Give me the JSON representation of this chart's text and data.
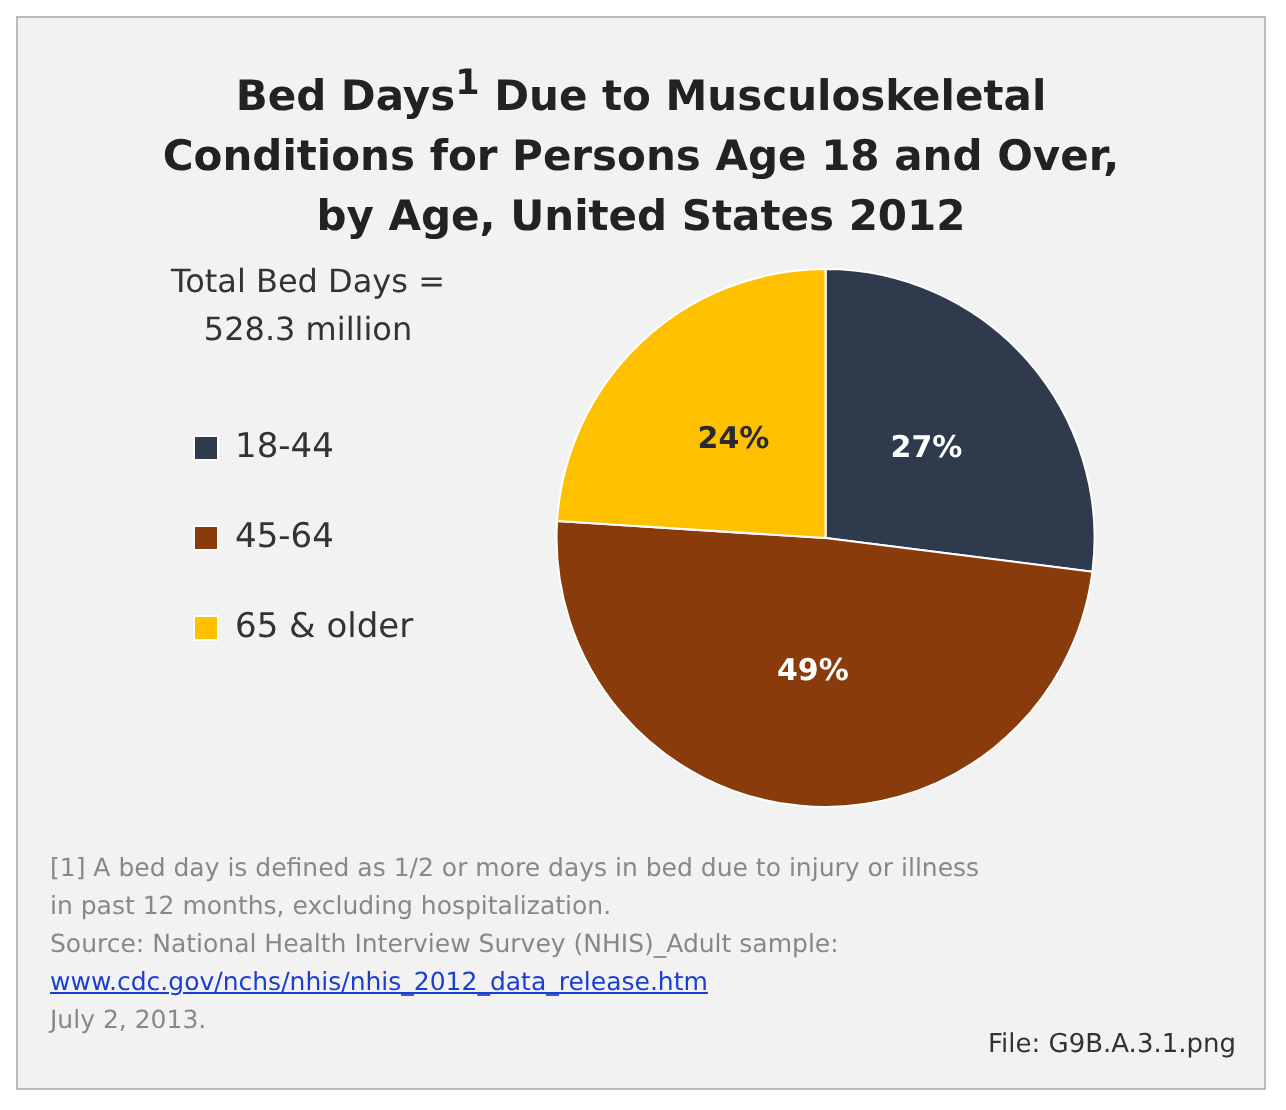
{
  "chart_data": {
    "type": "pie",
    "title": "Bed Days$^{1}$ Due to Musculoskeletal Conditions for Persons Age 18 and Over, by Age, United States 2012",
    "categories": [
      "18-44",
      "45-64",
      "65 & older"
    ],
    "values": [
      27,
      49,
      24
    ],
    "colors": [
      "#2f3b4c",
      "#8a3b0c",
      "#ffc000"
    ],
    "value_labels": [
      "27%",
      "49%",
      "24%"
    ],
    "legend": "left",
    "annotations": [
      "Total Bed Days = 528.3 million",
      "[1] A bed day is defined as 1/2 or more days in bed due to injury or illness in past 12 months, excluding hospitalization.",
      "Source: National Health Interview Survey (NHIS)_Adult sample:",
      "www.cdc.gov/nchs/nhis/nhis_2012_data_release.htm",
      "July 2, 2013.",
      "File: G9B.A.3.1.png"
    ]
  }
}
